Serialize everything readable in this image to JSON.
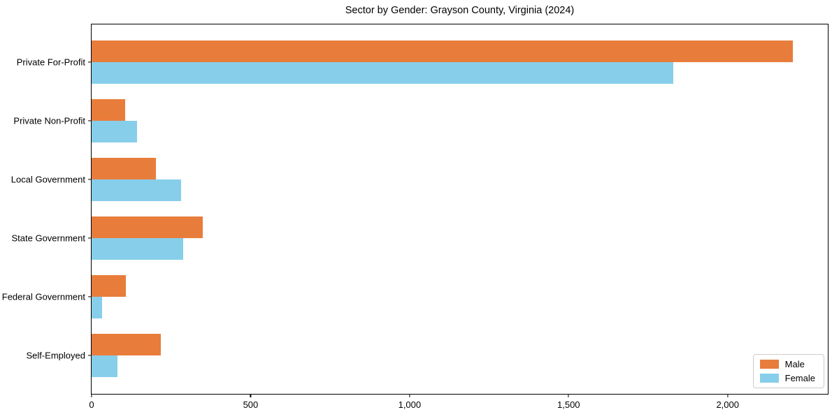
{
  "title": "Sector by Gender: Grayson County, Virginia (2024)",
  "chart_data": {
    "type": "bar",
    "orientation": "horizontal",
    "title": "Sector by Gender: Grayson County, Virginia (2024)",
    "xlabel": "",
    "ylabel": "",
    "categories": [
      "Private For-Profit",
      "Private Non-Profit",
      "Local Government",
      "State Government",
      "Federal Government",
      "Self-Employed"
    ],
    "series": [
      {
        "name": "Male",
        "color": "#e87d3b",
        "values": [
          2205,
          105,
          202,
          350,
          108,
          218
        ]
      },
      {
        "name": "Female",
        "color": "#87ceeb",
        "values": [
          1830,
          143,
          281,
          289,
          33,
          82
        ]
      }
    ],
    "xlim": [
      0,
      2315
    ],
    "x_ticks": [
      0,
      500,
      1000,
      1500,
      2000
    ],
    "x_tick_labels": [
      "0",
      "500",
      "1,000",
      "1,500",
      "2,000"
    ],
    "grid": false,
    "legend": {
      "position": "lower right",
      "entries": [
        "Male",
        "Female"
      ]
    }
  }
}
